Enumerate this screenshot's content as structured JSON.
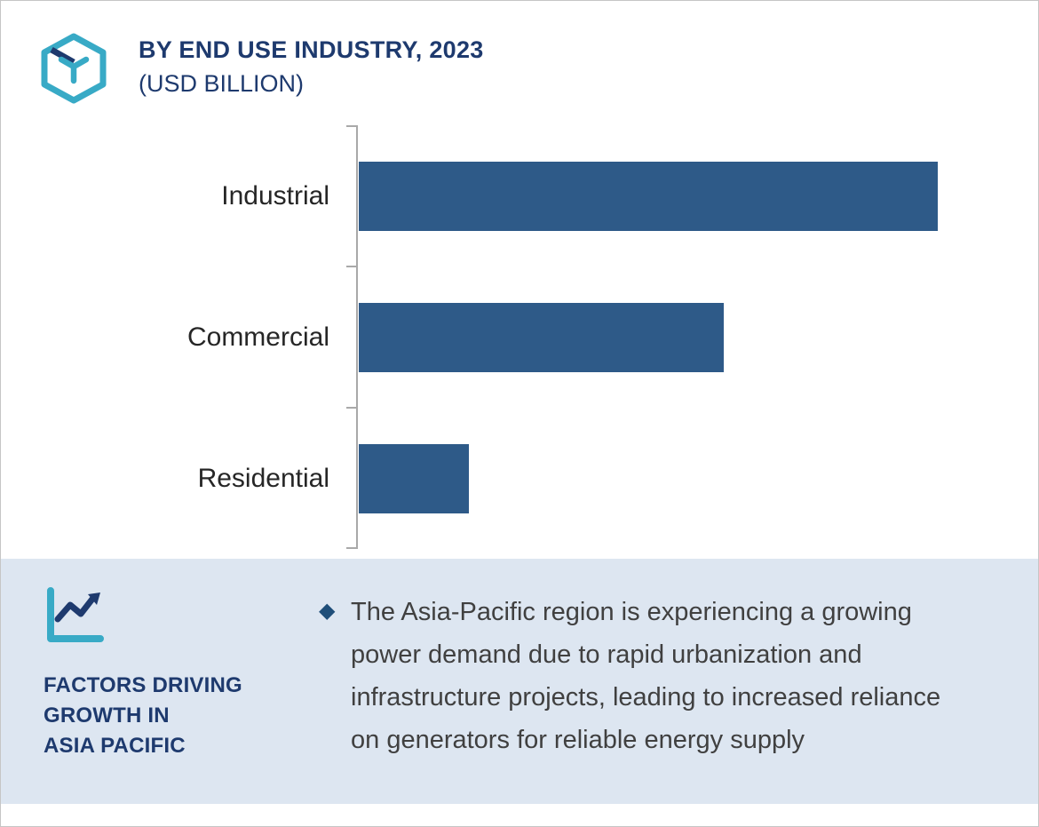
{
  "header": {
    "title_line1": "BY END USE INDUSTRY, 2023",
    "title_line2": "(USD BILLION)"
  },
  "chart_data": {
    "type": "bar",
    "orientation": "horizontal",
    "title": "BY END USE INDUSTRY, 2023 (USD BILLION)",
    "categories": [
      "Industrial",
      "Commercial",
      "Residential"
    ],
    "values": [
      100,
      63,
      19
    ],
    "value_note": "relative bar lengths; no numeric axis labels shown",
    "xlabel": "",
    "ylabel": "",
    "grid": false,
    "legend": "none",
    "bar_color": "#2e5a88"
  },
  "footer": {
    "heading_lines": [
      "FACTORS DRIVING",
      "GROWTH IN",
      "ASIA PACIFIC"
    ],
    "bullet_text": "The Asia-Pacific region is experiencing a growing power demand due to rapid urbanization and infrastructure projects, leading to increased reliance on generators for reliable energy supply"
  },
  "icons": {
    "diamond_bullet": "◆"
  },
  "colors": {
    "bar": "#2e5a88",
    "navy": "#1e3a6e",
    "teal": "#38aac6",
    "panel_bg": "#dde6f1",
    "bullet": "#1f4e79",
    "body_text": "#404040",
    "axis": "#a9a9a9"
  }
}
